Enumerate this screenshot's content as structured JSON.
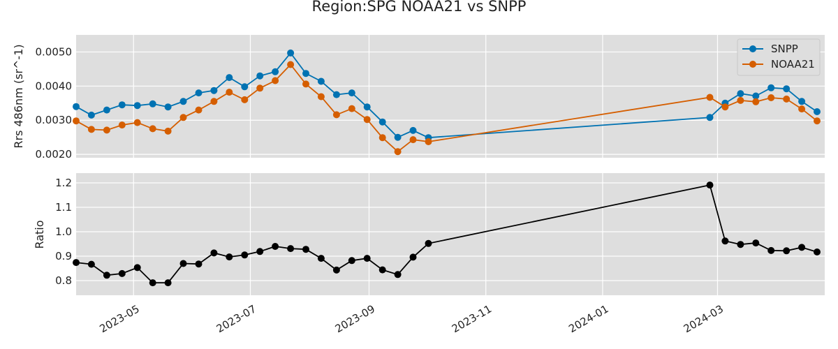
{
  "chart_data": {
    "type": "line",
    "title": "Region:SPG NOAA21 vs SNPP",
    "colors": {
      "snpp": "#0072b2",
      "noaa21": "#d55e00",
      "ratio": "#000000",
      "panel_bg": "#dedede",
      "grid": "#ffffff"
    },
    "x_ticks": [
      "2023-05",
      "2023-07",
      "2023-09",
      "2023-11",
      "2024-01",
      "2024-03"
    ],
    "xlim": [
      "2023-04-01",
      "2024-04-26"
    ],
    "panels": [
      {
        "name": "rrs",
        "ylabel": "Rrs 486nm (sr^-1)",
        "ylim": [
          0.0019,
          0.0055
        ],
        "y_ticks": [
          "0.0020",
          "0.0030",
          "0.0040",
          "0.0050"
        ],
        "legend": {
          "position": "top-right",
          "entries": [
            "SNPP",
            "NOAA21"
          ]
        },
        "series": [
          {
            "name": "SNPP",
            "color": "#0072b2",
            "points": [
              [
                "2023-04-01",
                0.0034
              ],
              [
                "2023-04-09",
                0.00315
              ],
              [
                "2023-04-17",
                0.0033
              ],
              [
                "2023-04-25",
                0.00345
              ],
              [
                "2023-05-03",
                0.00343
              ],
              [
                "2023-05-11",
                0.00348
              ],
              [
                "2023-05-19",
                0.00339
              ],
              [
                "2023-05-27",
                0.00355
              ],
              [
                "2023-06-04",
                0.0038
              ],
              [
                "2023-06-12",
                0.00387
              ],
              [
                "2023-06-20",
                0.00425
              ],
              [
                "2023-06-28",
                0.00398
              ],
              [
                "2023-07-06",
                0.0043
              ],
              [
                "2023-07-14",
                0.00442
              ],
              [
                "2023-07-22",
                0.00497
              ],
              [
                "2023-07-30",
                0.00437
              ],
              [
                "2023-08-07",
                0.00414
              ],
              [
                "2023-08-15",
                0.00375
              ],
              [
                "2023-08-23",
                0.0038
              ],
              [
                "2023-08-31",
                0.00339
              ],
              [
                "2023-09-08",
                0.00295
              ],
              [
                "2023-09-16",
                0.0025
              ],
              [
                "2023-09-24",
                0.0027
              ],
              [
                "2023-10-02",
                0.00249
              ],
              [
                "2024-02-26",
                0.00308
              ],
              [
                "2024-03-05",
                0.0035
              ],
              [
                "2024-03-13",
                0.00378
              ],
              [
                "2024-03-21",
                0.00371
              ],
              [
                "2024-03-29",
                0.00395
              ],
              [
                "2024-04-06",
                0.00392
              ],
              [
                "2024-04-14",
                0.00355
              ],
              [
                "2024-04-22",
                0.00325
              ]
            ]
          },
          {
            "name": "NOAA21",
            "color": "#d55e00",
            "points": [
              [
                "2023-04-01",
                0.00298
              ],
              [
                "2023-04-09",
                0.00273
              ],
              [
                "2023-04-17",
                0.00271
              ],
              [
                "2023-04-25",
                0.00286
              ],
              [
                "2023-05-03",
                0.00293
              ],
              [
                "2023-05-11",
                0.00275
              ],
              [
                "2023-05-19",
                0.00268
              ],
              [
                "2023-05-27",
                0.00308
              ],
              [
                "2023-06-04",
                0.0033
              ],
              [
                "2023-06-12",
                0.00355
              ],
              [
                "2023-06-20",
                0.00382
              ],
              [
                "2023-06-28",
                0.0036
              ],
              [
                "2023-07-06",
                0.00394
              ],
              [
                "2023-07-14",
                0.00416
              ],
              [
                "2023-07-22",
                0.00463
              ],
              [
                "2023-07-30",
                0.00406
              ],
              [
                "2023-08-07",
                0.00369
              ],
              [
                "2023-08-15",
                0.00316
              ],
              [
                "2023-08-23",
                0.00334
              ],
              [
                "2023-08-31",
                0.00302
              ],
              [
                "2023-09-08",
                0.00249
              ],
              [
                "2023-09-16",
                0.00208
              ],
              [
                "2023-09-24",
                0.00243
              ],
              [
                "2023-10-02",
                0.00237
              ],
              [
                "2024-02-26",
                0.00367
              ],
              [
                "2024-03-05",
                0.00339
              ],
              [
                "2024-03-13",
                0.00358
              ],
              [
                "2024-03-21",
                0.00354
              ],
              [
                "2024-03-29",
                0.00366
              ],
              [
                "2024-04-06",
                0.00362
              ],
              [
                "2024-04-14",
                0.00333
              ],
              [
                "2024-04-22",
                0.00298
              ]
            ]
          }
        ]
      },
      {
        "name": "ratio",
        "ylabel": "Ratio",
        "ylim": [
          0.74,
          1.24
        ],
        "y_ticks": [
          "0.8",
          "0.9",
          "1.0",
          "1.1",
          "1.2"
        ],
        "series": [
          {
            "name": "",
            "color": "#000000",
            "points": [
              [
                "2023-04-01",
                0.874
              ],
              [
                "2023-04-09",
                0.867
              ],
              [
                "2023-04-17",
                0.822
              ],
              [
                "2023-04-25",
                0.829
              ],
              [
                "2023-05-03",
                0.853
              ],
              [
                "2023-05-11",
                0.791
              ],
              [
                "2023-05-19",
                0.791
              ],
              [
                "2023-05-27",
                0.87
              ],
              [
                "2023-06-04",
                0.868
              ],
              [
                "2023-06-12",
                0.913
              ],
              [
                "2023-06-20",
                0.897
              ],
              [
                "2023-06-28",
                0.905
              ],
              [
                "2023-07-06",
                0.919
              ],
              [
                "2023-07-14",
                0.94
              ],
              [
                "2023-07-22",
                0.931
              ],
              [
                "2023-07-30",
                0.928
              ],
              [
                "2023-08-07",
                0.891
              ],
              [
                "2023-08-15",
                0.843
              ],
              [
                "2023-08-23",
                0.882
              ],
              [
                "2023-08-31",
                0.891
              ],
              [
                "2023-09-08",
                0.844
              ],
              [
                "2023-09-16",
                0.825
              ],
              [
                "2023-09-24",
                0.896
              ],
              [
                "2023-10-02",
                0.952
              ],
              [
                "2024-02-26",
                1.191
              ],
              [
                "2024-03-05",
                0.962
              ],
              [
                "2024-03-13",
                0.948
              ],
              [
                "2024-03-21",
                0.954
              ],
              [
                "2024-03-29",
                0.923
              ],
              [
                "2024-04-06",
                0.922
              ],
              [
                "2024-04-14",
                0.936
              ],
              [
                "2024-04-22",
                0.917
              ]
            ]
          }
        ]
      }
    ]
  }
}
